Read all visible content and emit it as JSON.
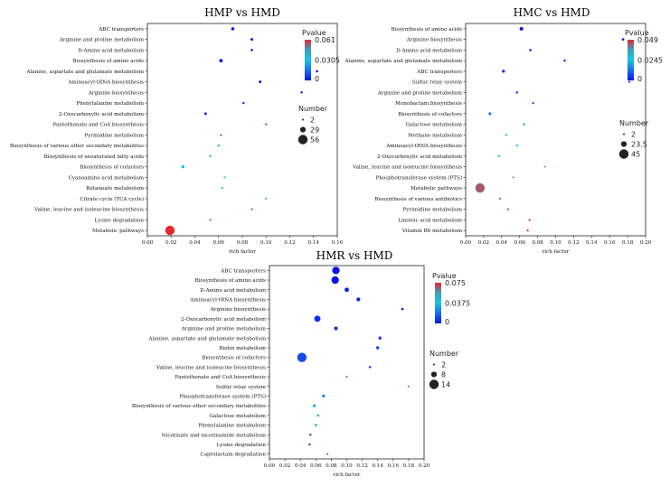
{
  "chart_data": [
    {
      "type": "scatter",
      "title": "HMP vs HMD",
      "xlabel": "rich factor",
      "xlim": [
        0,
        0.16
      ],
      "xticks": [
        "0.00",
        "0.02",
        "0.04",
        "0.06",
        "0.08",
        "0.10",
        "0.12",
        "0.14",
        "0.16"
      ],
      "color_legend": {
        "title": "Pvalue",
        "max": "0.061",
        "mid": "0.0305",
        "min": "0",
        "range": [
          0,
          0.061
        ]
      },
      "size_legend": {
        "title": "Number",
        "values": [
          "2",
          "29",
          "56"
        ],
        "range": [
          2,
          56
        ]
      },
      "points": [
        {
          "pathway": "ABC transporters",
          "rich_factor": 0.072,
          "pvalue": 0.0,
          "number": 12
        },
        {
          "pathway": "Arginine and proline metabolism",
          "rich_factor": 0.088,
          "pvalue": 0.0,
          "number": 8
        },
        {
          "pathway": "D-Amino acid metabolism",
          "rich_factor": 0.088,
          "pvalue": 0.0,
          "number": 6
        },
        {
          "pathway": "Biosynthesis of amino acids",
          "rich_factor": 0.062,
          "pvalue": 0.0,
          "number": 14
        },
        {
          "pathway": "Alanine, aspartate and glutamate metabolism",
          "rich_factor": 0.143,
          "pvalue": 0.0,
          "number": 6
        },
        {
          "pathway": "Aminoacyl-tRNA biosynthesis",
          "rich_factor": 0.095,
          "pvalue": 0.0,
          "number": 8
        },
        {
          "pathway": "Arginine biosynthesis",
          "rich_factor": 0.13,
          "pvalue": 0.0,
          "number": 5
        },
        {
          "pathway": "Phenylalanine metabolism",
          "rich_factor": 0.081,
          "pvalue": 0.005,
          "number": 5
        },
        {
          "pathway": "2-Oxocarboxylic acid metabolism",
          "rich_factor": 0.049,
          "pvalue": 0.005,
          "number": 8
        },
        {
          "pathway": "Pantothenate and CoA biosynthesis",
          "rich_factor": 0.1,
          "pvalue": 0.015,
          "number": 4
        },
        {
          "pathway": "Pyrimidine metabolism",
          "rich_factor": 0.062,
          "pvalue": 0.02,
          "number": 4
        },
        {
          "pathway": "Biosynthesis of various other secondary metabolites",
          "rich_factor": 0.06,
          "pvalue": 0.025,
          "number": 4
        },
        {
          "pathway": "Biosynthesis of unsaturated fatty acids",
          "rich_factor": 0.053,
          "pvalue": 0.025,
          "number": 4
        },
        {
          "pathway": "Biosynthesis of cofactors",
          "rich_factor": 0.03,
          "pvalue": 0.028,
          "number": 10
        },
        {
          "pathway": "Cyanoamino acid metabolism",
          "rich_factor": 0.065,
          "pvalue": 0.03,
          "number": 3
        },
        {
          "pathway": "Butanoate metabolism",
          "rich_factor": 0.063,
          "pvalue": 0.03,
          "number": 3
        },
        {
          "pathway": "Citrate cycle (TCA cycle)",
          "rich_factor": 0.1,
          "pvalue": 0.035,
          "number": 3
        },
        {
          "pathway": "Valine, leucine and isoleucine biosynthesis",
          "rich_factor": 0.088,
          "pvalue": 0.058,
          "number": 3
        },
        {
          "pathway": "Lysine degradation",
          "rich_factor": 0.053,
          "pvalue": 0.058,
          "number": 3
        },
        {
          "pathway": "Metabolic pathways",
          "rich_factor": 0.019,
          "pvalue": 0.061,
          "number": 56
        }
      ]
    },
    {
      "type": "scatter",
      "title": "HMC vs HMD",
      "xlabel": "rich factor",
      "xlim": [
        0,
        0.2
      ],
      "xticks": [
        "0.00",
        "0.02",
        "0.04",
        "0.06",
        "0.08",
        "0.10",
        "0.12",
        "0.14",
        "0.16",
        "0.18",
        "0.20"
      ],
      "color_legend": {
        "title": "Pvalue",
        "max": "0.049",
        "mid": "0.0245",
        "min": "0",
        "range": [
          0,
          0.049
        ]
      },
      "size_legend": {
        "title": "Number",
        "values": [
          "2",
          "23.5",
          "45"
        ],
        "range": [
          2,
          45
        ]
      },
      "points": [
        {
          "pathway": "Biosynthesis of amino acids",
          "rich_factor": 0.062,
          "pvalue": 0.0,
          "number": 12
        },
        {
          "pathway": "Arginine biosynthesis",
          "rich_factor": 0.175,
          "pvalue": 0.0,
          "number": 6
        },
        {
          "pathway": "D-Amino acid metabolism",
          "rich_factor": 0.072,
          "pvalue": 0.0,
          "number": 5
        },
        {
          "pathway": "Alanine, aspartate and glutamate metabolism",
          "rich_factor": 0.11,
          "pvalue": 0.0,
          "number": 4
        },
        {
          "pathway": "ABC transporters",
          "rich_factor": 0.042,
          "pvalue": 0.002,
          "number": 8
        },
        {
          "pathway": "Sulfur relay system",
          "rich_factor": 0.182,
          "pvalue": 0.005,
          "number": 3
        },
        {
          "pathway": "Arginine and proline metabolism",
          "rich_factor": 0.057,
          "pvalue": 0.007,
          "number": 5
        },
        {
          "pathway": "Monobactam biosynthesis",
          "rich_factor": 0.075,
          "pvalue": 0.01,
          "number": 4
        },
        {
          "pathway": "Biosynthesis of cofactors",
          "rich_factor": 0.027,
          "pvalue": 0.015,
          "number": 8
        },
        {
          "pathway": "Galactose metabolism",
          "rich_factor": 0.065,
          "pvalue": 0.02,
          "number": 4
        },
        {
          "pathway": "Methane metabolism",
          "rich_factor": 0.045,
          "pvalue": 0.022,
          "number": 3
        },
        {
          "pathway": "Aminoacyl-tRNA biosynthesis",
          "rich_factor": 0.057,
          "pvalue": 0.025,
          "number": 4
        },
        {
          "pathway": "2-Oxocarboxylic acid metabolism",
          "rich_factor": 0.037,
          "pvalue": 0.028,
          "number": 4
        },
        {
          "pathway": "Valine, leucine and isoleucine biosynthesis",
          "rich_factor": 0.088,
          "pvalue": 0.035,
          "number": 2
        },
        {
          "pathway": "Phosphotransferase system (PTS)",
          "rich_factor": 0.053,
          "pvalue": 0.04,
          "number": 2
        },
        {
          "pathway": "Metabolic pathways",
          "rich_factor": 0.016,
          "pvalue": 0.044,
          "number": 45
        },
        {
          "pathway": "Biosynthesis of various antibiotics",
          "rich_factor": 0.038,
          "pvalue": 0.045,
          "number": 3
        },
        {
          "pathway": "Pyrimidine metabolism",
          "rich_factor": 0.047,
          "pvalue": 0.046,
          "number": 3
        },
        {
          "pathway": "Linoleic acid metabolism",
          "rich_factor": 0.071,
          "pvalue": 0.048,
          "number": 3
        },
        {
          "pathway": "Vitamin B6 metabolism",
          "rich_factor": 0.069,
          "pvalue": 0.049,
          "number": 3
        }
      ]
    },
    {
      "type": "scatter",
      "title": "HMR vs HMD",
      "xlabel": "rich factor",
      "xlim": [
        0,
        0.2
      ],
      "xticks": [
        "0.00",
        "0.02",
        "0.04",
        "0.06",
        "0.08",
        "0.10",
        "0.12",
        "0.14",
        "0.16",
        "0.18",
        "0.20"
      ],
      "color_legend": {
        "title": "Pvalue",
        "max": "0.075",
        "mid": "0.0375",
        "min": "0",
        "range": [
          0,
          0.075
        ]
      },
      "size_legend": {
        "title": "Number",
        "values": [
          "2",
          "8",
          "14"
        ],
        "range": [
          2,
          14
        ]
      },
      "points": [
        {
          "pathway": "ABC transporters",
          "rich_factor": 0.086,
          "pvalue": 0.0,
          "number": 11
        },
        {
          "pathway": "Biosynthesis of amino acids",
          "rich_factor": 0.085,
          "pvalue": 0.0,
          "number": 11
        },
        {
          "pathway": "D-Amino acid metabolism",
          "rich_factor": 0.1,
          "pvalue": 0.002,
          "number": 6
        },
        {
          "pathway": "Aminoacyl-tRNA biosynthesis",
          "rich_factor": 0.115,
          "pvalue": 0.003,
          "number": 5
        },
        {
          "pathway": "Arginine biosynthesis",
          "rich_factor": 0.172,
          "pvalue": 0.004,
          "number": 3
        },
        {
          "pathway": "2-Oxocarboxylic acid metabolism",
          "rich_factor": 0.062,
          "pvalue": 0.005,
          "number": 9
        },
        {
          "pathway": "Arginine and proline metabolism",
          "rich_factor": 0.086,
          "pvalue": 0.006,
          "number": 5
        },
        {
          "pathway": "Alanine, aspartate and glutamate metabolism",
          "rich_factor": 0.143,
          "pvalue": 0.008,
          "number": 4
        },
        {
          "pathway": "Biotin metabolism",
          "rich_factor": 0.14,
          "pvalue": 0.01,
          "number": 4
        },
        {
          "pathway": "Biosynthesis of cofactors",
          "rich_factor": 0.042,
          "pvalue": 0.012,
          "number": 14
        },
        {
          "pathway": "Valine, leucine and isoleucine biosynthesis",
          "rich_factor": 0.13,
          "pvalue": 0.015,
          "number": 3
        },
        {
          "pathway": "Pantothenate and CoA biosynthesis",
          "rich_factor": 0.1,
          "pvalue": 0.02,
          "number": 2
        },
        {
          "pathway": "Sulfur relay system",
          "rich_factor": 0.18,
          "pvalue": 0.024,
          "number": 2
        },
        {
          "pathway": "Phosphotransferase system (PTS)",
          "rich_factor": 0.07,
          "pvalue": 0.028,
          "number": 4
        },
        {
          "pathway": "Biosynthesis of various other secondary metabolites",
          "rich_factor": 0.058,
          "pvalue": 0.035,
          "number": 4
        },
        {
          "pathway": "Galactose metabolism",
          "rich_factor": 0.063,
          "pvalue": 0.042,
          "number": 3
        },
        {
          "pathway": "Phenylalanine metabolism",
          "rich_factor": 0.06,
          "pvalue": 0.048,
          "number": 3
        },
        {
          "pathway": "Nicotinate and nicotinamide metabolism",
          "rich_factor": 0.053,
          "pvalue": 0.065,
          "number": 3
        },
        {
          "pathway": "Lysine degradation",
          "rich_factor": 0.052,
          "pvalue": 0.07,
          "number": 3
        },
        {
          "pathway": "Caprolactam degradation",
          "rich_factor": 0.075,
          "pvalue": 0.075,
          "number": 2
        }
      ]
    }
  ]
}
